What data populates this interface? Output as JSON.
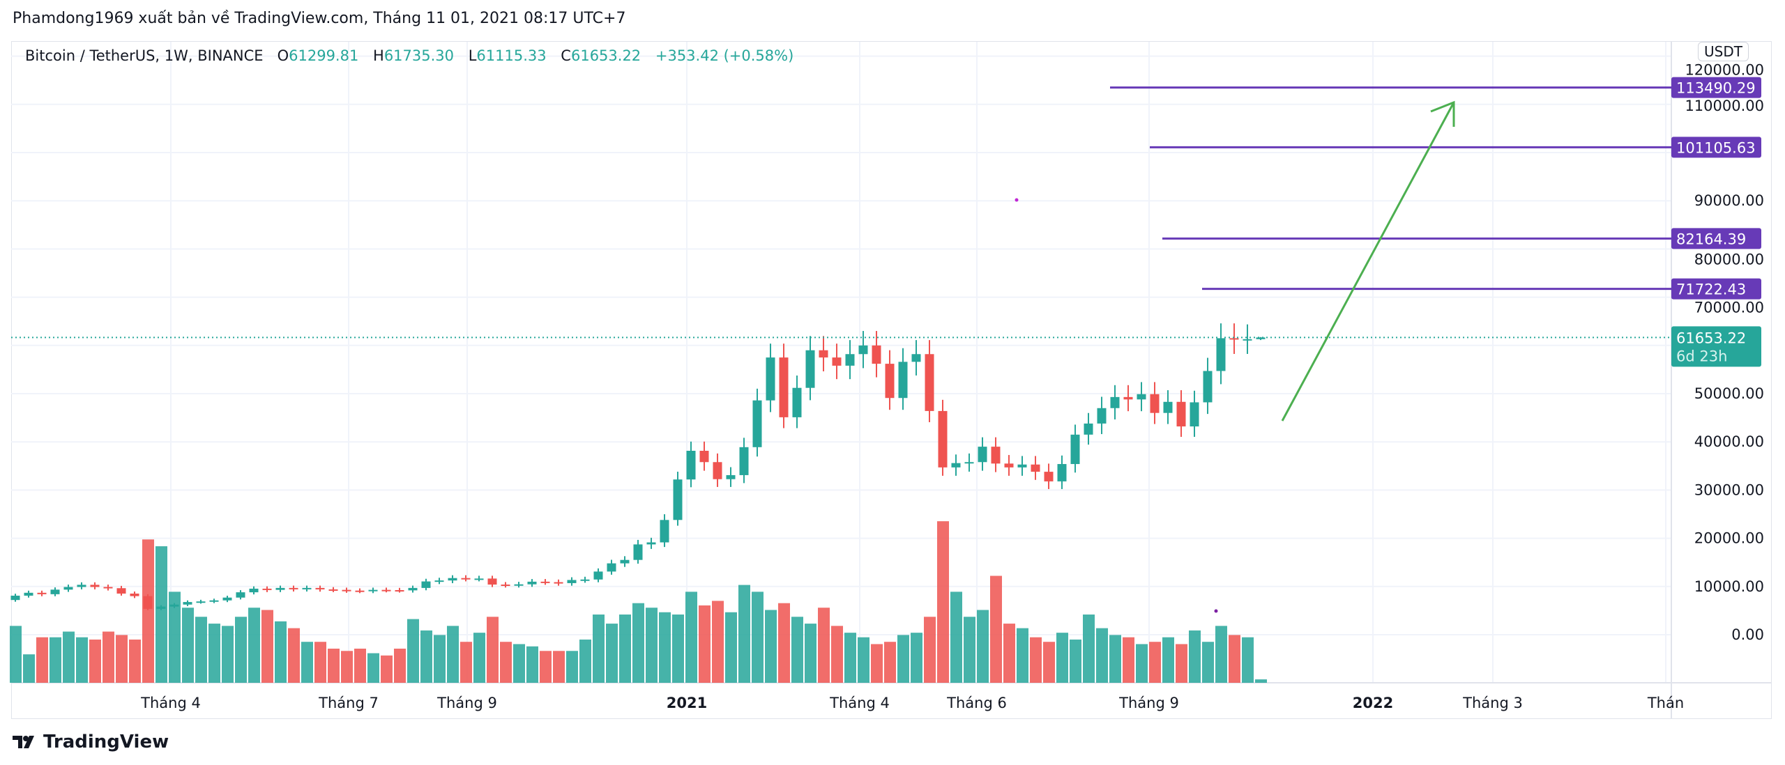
{
  "header": {
    "published": "Phamdong1969 xuất bản về TradingView.com, Tháng 11 01, 2021 08:17 UTC+7"
  },
  "legend": {
    "symbol": "Bitcoin / TetherUS, 1W, BINANCE",
    "o_label": "O",
    "o": "61299.81",
    "h_label": "H",
    "h": "61735.30",
    "l_label": "L",
    "l": "61115.33",
    "c_label": "C",
    "c": "61653.22",
    "change": "+353.42 (+0.58%)"
  },
  "currency_button": "USDT",
  "price_axis": {
    "ticks": [
      "120000.00",
      "110000.00",
      "90000.00",
      "80000.00",
      "70000.00",
      "50000.00",
      "40000.00",
      "30000.00",
      "20000.00",
      "10000.00",
      "0.00"
    ]
  },
  "time_axis": {
    "labels": [
      "Tháng 4",
      "Tháng 7",
      "Tháng 9",
      "2021",
      "Tháng 4",
      "Tháng 6",
      "Tháng 9",
      "2022",
      "Tháng 3",
      "Thán"
    ]
  },
  "last_price": {
    "value": "61653.22",
    "countdown": "6d 23h"
  },
  "levels": [
    {
      "label": "113490.29",
      "price": 113490.29
    },
    {
      "label": "101105.63",
      "price": 101105.63
    },
    {
      "label": "82164.39",
      "price": 82164.39
    },
    {
      "label": "71722.43",
      "price": 71722.43
    }
  ],
  "colors": {
    "up": "#26a69a",
    "down": "#ef5350",
    "level": "#673ab7",
    "arrow": "#4caf50",
    "grid": "#f0f3fa"
  },
  "footer": {
    "brand": "TradingView"
  },
  "chart_data": {
    "type": "candlestick",
    "interval": "1W",
    "first_open": 7200,
    "last_candle": {
      "o": 61299.81,
      "h": 61735.3,
      "l": 61115.33,
      "c": 61653.22
    },
    "closes": [
      8100,
      8700,
      8400,
      9350,
      9900,
      10350,
      9900,
      9650,
      8530,
      8000,
      5360,
      5830,
      6250,
      6780,
      6900,
      7120,
      7700,
      8800,
      9550,
      9300,
      9700,
      9430,
      9700,
      9400,
      9300,
      9150,
      9080,
      9300,
      9250,
      9200,
      9700,
      11050,
      11250,
      11750,
      11650,
      11650,
      10400,
      10300,
      10450,
      11000,
      10900,
      10700,
      11350,
      11450,
      13100,
      14800,
      15510,
      18730,
      19150,
      23800,
      32200,
      38150,
      35800,
      32260,
      33100,
      38900,
      48600,
      57500,
      45100,
      51200,
      59000,
      57500,
      55800,
      58200,
      60000,
      56200,
      49100,
      56600,
      58200,
      46400,
      34700,
      35600,
      35800,
      39000,
      35500,
      34700,
      35300,
      33800,
      31800,
      35400,
      41500,
      43800,
      47000,
      49300,
      48800,
      49900,
      46000,
      48300,
      43200,
      48200,
      54700,
      61500,
      61300,
      61300,
      61653.22
    ],
    "volumes": [
      50,
      25,
      40,
      40,
      45,
      40,
      38,
      45,
      42,
      38,
      126,
      120,
      80,
      66,
      58,
      52,
      50,
      58,
      66,
      64,
      54,
      48,
      36,
      36,
      30,
      28,
      30,
      26,
      24,
      30,
      56,
      46,
      42,
      50,
      36,
      44,
      58,
      36,
      34,
      32,
      28,
      28,
      28,
      38,
      60,
      52,
      60,
      70,
      66,
      62,
      60,
      80,
      68,
      72,
      62,
      86,
      80,
      64,
      70,
      58,
      52,
      66,
      50,
      44,
      40,
      34,
      36,
      42,
      44,
      58,
      142,
      80,
      58,
      64,
      94,
      52,
      48,
      40,
      36,
      44,
      38,
      60,
      48,
      42,
      40,
      34,
      36,
      40,
      34,
      46,
      36,
      50,
      42,
      40,
      3
    ],
    "ylim": [
      0,
      120000
    ],
    "annotations": [
      "horizontal levels",
      "upward arrow"
    ]
  }
}
